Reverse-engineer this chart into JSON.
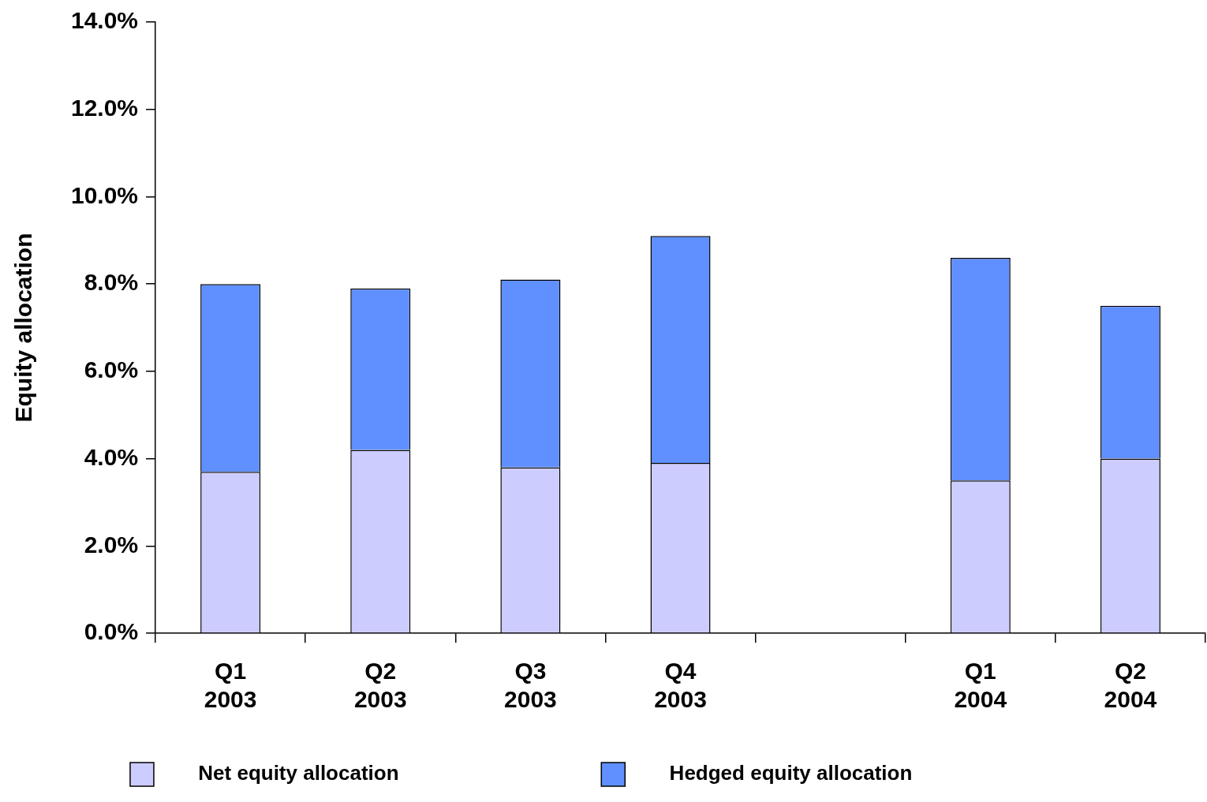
{
  "chart_data": {
    "type": "bar",
    "ylabel": "Equity allocation",
    "categories": [
      "Q1\n2003",
      "Q2\n2003",
      "Q3\n2003",
      "Q4\n2003",
      null,
      "Q1\n2004",
      "Q2\n2004"
    ],
    "series": [
      {
        "name": "Net equity allocation",
        "color": "#ccccff",
        "values": [
          3.7,
          4.2,
          3.8,
          3.9,
          null,
          3.5,
          4.0
        ]
      },
      {
        "name": "Hedged equity allocation",
        "color": "#6090ff",
        "values": [
          4.3,
          3.7,
          4.3,
          5.2,
          null,
          5.1,
          3.5
        ]
      }
    ],
    "stacked": true,
    "ylim": [
      0,
      14
    ],
    "yticks": [
      {
        "value": 0,
        "label": "0.0%"
      },
      {
        "value": 2,
        "label": "2.0%"
      },
      {
        "value": 4,
        "label": "4.0%"
      },
      {
        "value": 6,
        "label": "6.0%"
      },
      {
        "value": 8,
        "label": "8.0%"
      },
      {
        "value": 10,
        "label": "10.0%"
      },
      {
        "value": 12,
        "label": "12.0%"
      },
      {
        "value": 14,
        "label": "14.0%"
      }
    ],
    "grid": false,
    "legend": "bottom"
  }
}
